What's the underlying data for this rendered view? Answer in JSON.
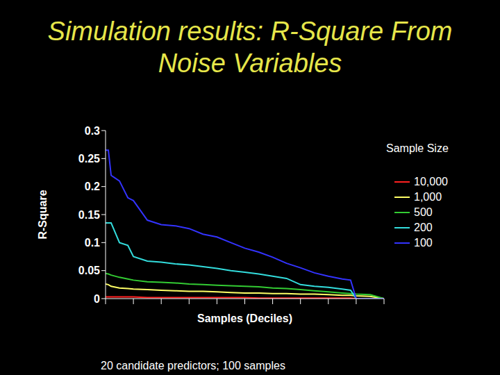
{
  "chart_data": {
    "type": "line",
    "title": "Simulation results: R-Square From Noise Variables",
    "x_label": "Samples (Deciles)",
    "y_label": "R-Square",
    "footnote": "20 candidate predictors; 100 samples",
    "legend_title": "Sample Size",
    "legend": "right",
    "grid": false,
    "tick_labels": "y",
    "x": [
      0,
      1,
      2,
      5,
      8,
      10,
      15,
      20,
      25,
      30,
      35,
      40,
      45,
      50,
      55,
      60,
      65,
      70,
      75,
      80,
      85,
      88,
      90,
      95,
      100
    ],
    "xlim": [
      0,
      100
    ],
    "xticks": [
      0,
      10,
      20,
      30,
      40,
      50,
      60,
      70,
      80,
      90,
      100
    ],
    "ylim": [
      0,
      0.3
    ],
    "yticks": [
      0,
      0.05,
      0.1,
      0.15,
      0.2,
      0.25,
      0.3
    ],
    "series": [
      {
        "name": "10,000",
        "color": "#ff2020",
        "values": [
          0.003,
          0.003,
          0.003,
          0.003,
          0.003,
          0.003,
          0.002,
          0.002,
          0.002,
          0.002,
          0.002,
          0.002,
          0.002,
          0.002,
          0.001,
          0.001,
          0.001,
          0.001,
          0.001,
          0.001,
          0.001,
          0.001,
          0,
          0,
          0
        ]
      },
      {
        "name": "1,000",
        "color": "#ffff66",
        "values": [
          0.026,
          0.025,
          0.022,
          0.019,
          0.018,
          0.017,
          0.016,
          0.015,
          0.014,
          0.013,
          0.013,
          0.012,
          0.011,
          0.01,
          0.01,
          0.009,
          0.009,
          0.008,
          0.008,
          0.007,
          0.006,
          0.006,
          0.005,
          0.004,
          0
        ]
      },
      {
        "name": "500",
        "color": "#33cc33",
        "values": [
          0.045,
          0.044,
          0.042,
          0.038,
          0.035,
          0.033,
          0.03,
          0.029,
          0.028,
          0.026,
          0.025,
          0.024,
          0.023,
          0.022,
          0.021,
          0.019,
          0.018,
          0.016,
          0.014,
          0.012,
          0.01,
          0.009,
          0.008,
          0.007,
          0
        ]
      },
      {
        "name": "200",
        "color": "#33dddd",
        "values": [
          0.135,
          0.135,
          0.135,
          0.1,
          0.095,
          0.075,
          0.067,
          0.065,
          0.062,
          0.06,
          0.057,
          0.054,
          0.05,
          0.047,
          0.044,
          0.04,
          0.036,
          0.025,
          0.022,
          0.02,
          0.017,
          0.015,
          0,
          0,
          0
        ]
      },
      {
        "name": "100",
        "color": "#3333ff",
        "values": [
          0.265,
          0.265,
          0.22,
          0.21,
          0.18,
          0.175,
          0.14,
          0.132,
          0.13,
          0.125,
          0.115,
          0.11,
          0.1,
          0.09,
          0.083,
          0.074,
          0.063,
          0.055,
          0.046,
          0.04,
          0.035,
          0.033,
          0,
          0,
          0
        ]
      }
    ]
  }
}
